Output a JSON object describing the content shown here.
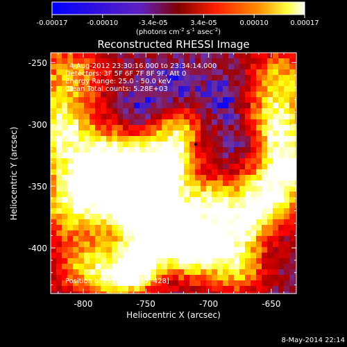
{
  "colorbar": {
    "ticks": [
      "-0.00017",
      "-0.00010",
      "-3.4e-05",
      "3.4e-05",
      "0.00010",
      "0.00017"
    ],
    "unit_main": "(photons cm",
    "unit_e1": "-2",
    "unit_mid": " s",
    "unit_e2": "-1",
    "unit_mid2": " asec",
    "unit_e3": "-2",
    "unit_end": ")"
  },
  "chart_data": {
    "type": "heatmap",
    "title": "Reconstructed RHESSI Image",
    "xlabel": "Heliocentric X (arcsec)",
    "ylabel": "Heliocentric Y (arcsec)",
    "xlim": [
      -826,
      -630
    ],
    "ylim": [
      -437,
      -242
    ],
    "zlim": [
      -0.00017,
      0.00017
    ],
    "x_ticks": [
      "-800",
      "-750",
      "-700",
      "-650"
    ],
    "x_tick_values": [
      -800,
      -750,
      -700,
      -650
    ],
    "y_ticks": [
      "-250",
      "-300",
      "-350",
      "-400"
    ],
    "y_tick_values": [
      -250,
      -300,
      -350,
      -400
    ],
    "colormap": [
      "#0000ff",
      "#7030a0",
      "#a00000",
      "#ff0000",
      "#ff8000",
      "#ffff00",
      "#ffffff"
    ],
    "annotations": {
      "time": "4-Aug-2012 23:30:16.000 to 23:34:14.000",
      "detectors": "Detectors: 3F 5F 6F 7F 8F 9F, Att 0",
      "energy": "Energy Range: 25.0 - 50.0 keV",
      "method": "Clean    Total counts: 5.28E+03",
      "peak": "Position of Peak = [-749,-428]"
    },
    "peak_position": [
      -749,
      -428
    ]
  },
  "footer": {
    "date": "8-May-2014 22:14"
  }
}
